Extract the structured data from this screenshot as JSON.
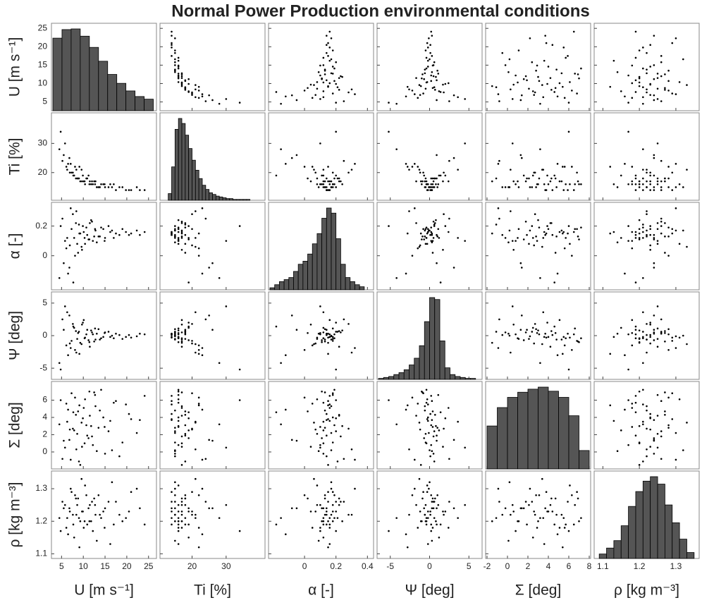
{
  "chart_data": {
    "type": "scatter_matrix",
    "title": "Normal Power Production environmental conditions",
    "point_color": "#000000",
    "bar_color": "#555555",
    "variables": [
      {
        "label": "U [m s⁻¹]",
        "xlim": [
          3,
          26.5
        ],
        "ylim": [
          3,
          26
        ],
        "xticks": [
          5,
          10,
          15,
          20,
          25
        ],
        "yticks": [
          5,
          10,
          15,
          20,
          25
        ],
        "hist_bins": [
          3,
          5.1,
          7.2,
          9.3,
          11.4,
          13.5,
          15.6,
          17.7,
          19.8,
          21.9,
          24,
          26.1
        ],
        "hist_counts": [
          220,
          246,
          248,
          226,
          192,
          150,
          110,
          83,
          60,
          43,
          35
        ],
        "samples": [
          4.5,
          5.2,
          6.1,
          6.8,
          7.3,
          7.9,
          8.4,
          8.8,
          9.3,
          9.9,
          10.4,
          10.9,
          11.5,
          12.2,
          12.8,
          13.5,
          14.1,
          15.0,
          16.2,
          17.5,
          19.0,
          20.5,
          22.3,
          24.1,
          5.8,
          6.5,
          7.6,
          8.1,
          9.0,
          9.6,
          10.1,
          11.2,
          11.8,
          12.5,
          13.1,
          14.6,
          15.8,
          17.0,
          18.3,
          21.0,
          4.8,
          5.5,
          6.3,
          7.1,
          7.7,
          8.6,
          9.1,
          9.7,
          10.7,
          11.4,
          12.0,
          13.8,
          14.9,
          16.6,
          19.8,
          23.0,
          6.9,
          8.3,
          10.3,
          12.7
        ]
      },
      {
        "label": "Ti [%]",
        "xlim": [
          11,
          41
        ],
        "ylim": [
          11,
          40
        ],
        "xticks": [
          20,
          30
        ],
        "yticks": [
          20,
          30
        ],
        "hist_bins": [
          13,
          14,
          15,
          16,
          17,
          18,
          19,
          20,
          21,
          22,
          23,
          24,
          25,
          26,
          27,
          28,
          29,
          30,
          31,
          32,
          33,
          34,
          35,
          36,
          37
        ],
        "hist_counts": [
          8,
          40,
          85,
          98,
          92,
          78,
          62,
          48,
          36,
          26,
          18,
          13,
          9,
          7,
          5,
          4,
          3,
          2,
          2,
          1,
          1,
          1,
          1,
          1
        ],
        "samples": [
          28,
          24,
          22,
          25,
          20,
          19,
          21,
          18,
          17,
          19,
          16,
          18,
          17,
          16,
          17,
          15,
          16,
          15,
          16,
          14,
          15,
          14,
          15,
          14,
          30,
          23,
          20,
          22,
          18,
          21,
          17,
          19,
          16,
          17,
          15,
          16,
          15,
          16,
          15,
          14,
          34,
          26,
          21,
          23,
          19,
          18,
          22,
          17,
          18,
          16,
          17,
          15,
          16,
          15,
          14,
          14,
          20,
          18,
          17,
          16
        ]
      },
      {
        "label": "α [-]",
        "xlim": [
          -0.22,
          0.43
        ],
        "ylim": [
          -0.22,
          0.35
        ],
        "xticks": [
          0,
          0.2,
          0.4
        ],
        "yticks": [
          0,
          0.2
        ],
        "hist_bins": [
          -0.22,
          -0.19,
          -0.16,
          -0.13,
          -0.1,
          -0.07,
          -0.04,
          -0.01,
          0.02,
          0.05,
          0.08,
          0.11,
          0.14,
          0.17,
          0.2,
          0.23,
          0.26,
          0.29,
          0.32,
          0.35,
          0.38
        ],
        "hist_counts": [
          2,
          5,
          8,
          10,
          12,
          18,
          25,
          28,
          35,
          45,
          55,
          70,
          80,
          75,
          50,
          25,
          12,
          8,
          5,
          3
        ],
        "samples": [
          -0.15,
          0.25,
          0.05,
          -0.08,
          0.18,
          0.12,
          0.3,
          0.02,
          0.15,
          0.2,
          0.08,
          0.14,
          0.22,
          0.1,
          0.17,
          0.13,
          0.19,
          0.12,
          0.16,
          0.15,
          0.18,
          0.14,
          0.17,
          0.16,
          0.1,
          -0.12,
          0.28,
          0.0,
          0.21,
          0.06,
          0.16,
          0.11,
          0.24,
          0.13,
          0.09,
          0.18,
          0.2,
          0.12,
          0.14,
          0.15,
          0.2,
          -0.05,
          0.12,
          0.32,
          -0.18,
          0.08,
          0.15,
          0.04,
          0.19,
          0.11,
          0.23,
          0.13,
          0.1,
          0.17,
          0.16,
          0.14,
          0.07,
          0.22,
          0.12,
          0.18
        ]
      },
      {
        "label": "Ψ [deg]",
        "xlim": [
          -6.5,
          6.5
        ],
        "ylim": [
          -6.5,
          6.5
        ],
        "xticks": [
          -5,
          0,
          5
        ],
        "yticks": [
          -5,
          0,
          5
        ],
        "hist_bins": [
          -6.5,
          -5.85,
          -5.2,
          -4.55,
          -3.9,
          -3.25,
          -2.6,
          -1.95,
          -1.3,
          -0.65,
          0,
          0.65,
          1.3,
          1.95,
          2.6,
          3.25,
          3.9,
          4.55,
          5.2,
          5.85,
          6.5
        ],
        "hist_counts": [
          1,
          2,
          3,
          5,
          7,
          10,
          15,
          22,
          35,
          60,
          85,
          83,
          40,
          12,
          5,
          3,
          2,
          1,
          1,
          0
        ],
        "samples": [
          -4.2,
          2.5,
          -1.5,
          3.1,
          -0.8,
          1.2,
          -2.6,
          0.4,
          -1.1,
          2.0,
          -0.3,
          0.9,
          -1.7,
          0.2,
          -0.6,
          1.0,
          -0.4,
          0.5,
          -0.2,
          0.3,
          -0.5,
          0.1,
          -0.1,
          0.2,
          4.5,
          -3.0,
          1.8,
          -2.2,
          0.6,
          -1.3,
          2.4,
          -0.7,
          0.8,
          -0.9,
          0.3,
          -0.2,
          0.6,
          -0.4,
          0.1,
          -0.3,
          -5.2,
          0.9,
          3.6,
          -1.9,
          1.4,
          -0.5,
          -2.8,
          1.7,
          0.2,
          -1.0,
          0.5,
          -0.6,
          0.4,
          0.0,
          -0.2,
          0.3,
          -1.2,
          0.7,
          -0.4,
          1.1
        ]
      },
      {
        "label": "Σ [deg]",
        "xlim": [
          -2,
          8
        ],
        "ylim": [
          -1.8,
          8
        ],
        "xticks": [
          -2,
          0,
          2,
          4,
          6,
          8
        ],
        "yticks": [
          0,
          2,
          4,
          6
        ],
        "hist_bins": [
          -2,
          -1,
          0,
          1,
          2,
          3,
          4,
          5,
          6,
          7,
          8
        ],
        "hist_counts": [
          42,
          60,
          70,
          75,
          78,
          80,
          76,
          70,
          52,
          18
        ],
        "samples": [
          3.2,
          -0.8,
          5.6,
          1.4,
          6.8,
          2.5,
          0.3,
          4.7,
          -1.5,
          3.9,
          6.1,
          1.9,
          4.2,
          0.8,
          5.3,
          2.8,
          7.2,
          -0.2,
          3.6,
          5.9,
          1.1,
          4.4,
          2.2,
          6.5,
          0.5,
          4.9,
          2.7,
          6.3,
          -1.1,
          3.4,
          5.1,
          1.6,
          3.0,
          6.9,
          0.1,
          4.0,
          2.4,
          5.7,
          -0.5,
          3.8,
          6.0,
          1.3,
          3.5,
          -0.9,
          4.6,
          2.1,
          5.4,
          0.6,
          3.1,
          7.0,
          1.8,
          4.8,
          2.9,
          0.2,
          5.5,
          3.7,
          2.6,
          4.3,
          1.0,
          6.6
        ]
      },
      {
        "label": "ρ [kg m⁻³]",
        "xlim": [
          1.08,
          1.36
        ],
        "ylim": [
          1.09,
          1.35
        ],
        "xticks": [
          1.1,
          1.2,
          1.3
        ],
        "yticks": [
          1.1,
          1.2,
          1.3
        ],
        "hist_bins": [
          1.09,
          1.11,
          1.13,
          1.15,
          1.17,
          1.19,
          1.21,
          1.23,
          1.25,
          1.27,
          1.29,
          1.31,
          1.33,
          1.35
        ],
        "hist_counts": [
          3,
          7,
          12,
          22,
          35,
          45,
          52,
          55,
          50,
          36,
          24,
          13,
          4
        ],
        "samples": [
          1.21,
          1.26,
          1.18,
          1.24,
          1.29,
          1.15,
          1.22,
          1.27,
          1.2,
          1.23,
          1.31,
          1.19,
          1.25,
          1.17,
          1.22,
          1.28,
          1.21,
          1.24,
          1.13,
          1.26,
          1.2,
          1.23,
          1.3,
          1.19,
          1.25,
          1.16,
          1.22,
          1.28,
          1.21,
          1.33,
          1.18,
          1.24,
          1.2,
          1.27,
          1.14,
          1.23,
          1.26,
          1.19,
          1.22,
          1.29,
          1.17,
          1.24,
          1.21,
          1.3,
          1.19,
          1.25,
          1.12,
          1.23,
          1.28,
          1.2,
          1.26,
          1.22,
          1.18,
          1.32,
          1.21,
          1.24,
          1.23,
          1.27,
          1.2,
          1.25
        ]
      }
    ]
  }
}
